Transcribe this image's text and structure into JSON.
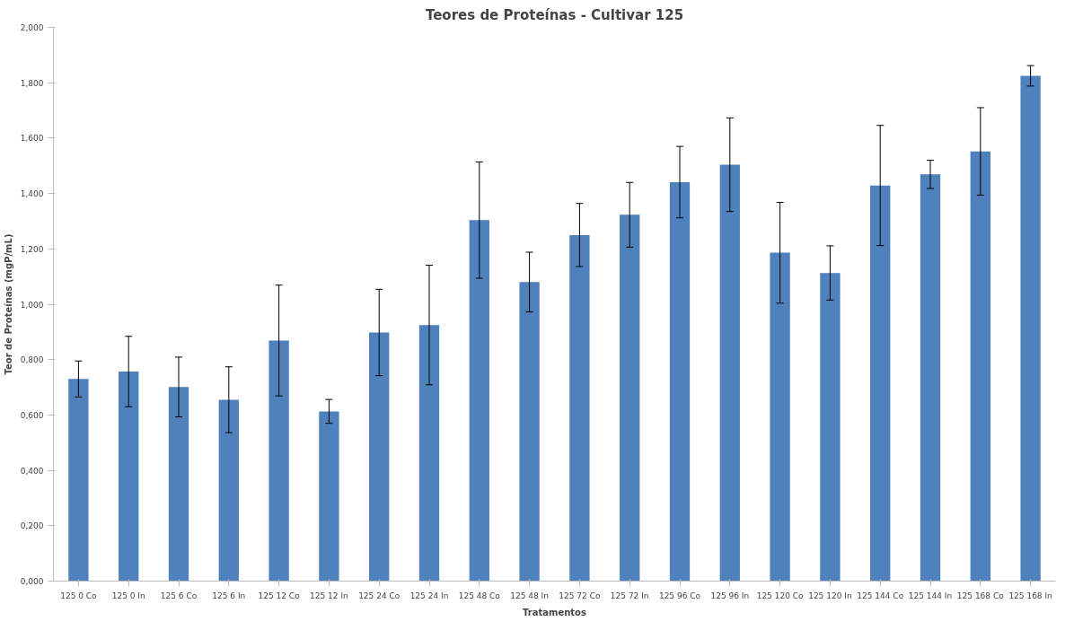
{
  "chart_data": {
    "type": "bar",
    "title": "Teores de Proteínas - Cultivar 125",
    "xlabel": "Tratamentos",
    "ylabel": "Teor de Proteínas (mgP/mL)",
    "categories": [
      "125 0 Co",
      "125 0 In",
      "125 6 Co",
      "125 6 In",
      "125 12 Co",
      "125 12 In",
      "125 24 Co",
      "125 24 In",
      "125 48 Co",
      "125 48 In",
      "125 72 Co",
      "125 72 In",
      "125 96 Co",
      "125 96 In",
      "125 120 Co",
      "125 120 In",
      "125 144 Co",
      "125 144 In",
      "125 168 Co",
      "125 168 In"
    ],
    "values": [
      0.73,
      0.757,
      0.701,
      0.655,
      0.869,
      0.613,
      0.898,
      0.925,
      1.304,
      1.08,
      1.25,
      1.323,
      1.441,
      1.504,
      1.186,
      1.113,
      1.429,
      1.469,
      1.552,
      1.825
    ],
    "errors": [
      0.065,
      0.127,
      0.108,
      0.119,
      0.2,
      0.043,
      0.156,
      0.216,
      0.21,
      0.108,
      0.114,
      0.117,
      0.129,
      0.169,
      0.182,
      0.098,
      0.217,
      0.051,
      0.158,
      0.037
    ],
    "color": "#4f81bd",
    "ylim": [
      0,
      2
    ],
    "yticks": [
      {
        "value": 0,
        "label": "0,000"
      },
      {
        "value": 0.2,
        "label": "0,200"
      },
      {
        "value": 0.4,
        "label": "0,400"
      },
      {
        "value": 0.6,
        "label": "0,600"
      },
      {
        "value": 0.8,
        "label": "0,800"
      },
      {
        "value": 1.0,
        "label": "1,000"
      },
      {
        "value": 1.2,
        "label": "1,200"
      },
      {
        "value": 1.4,
        "label": "1,400"
      },
      {
        "value": 1.6,
        "label": "1,600"
      },
      {
        "value": 1.8,
        "label": "1,800"
      },
      {
        "value": 2.0,
        "label": "2,000"
      }
    ],
    "grid": false
  }
}
